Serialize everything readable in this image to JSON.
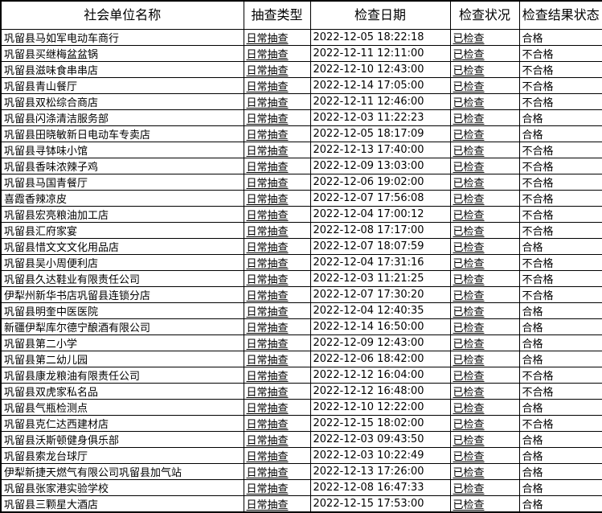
{
  "table": {
    "columns": [
      {
        "key": "name",
        "label": "社会单位名称"
      },
      {
        "key": "type",
        "label": "抽查类型"
      },
      {
        "key": "date",
        "label": "检查日期"
      },
      {
        "key": "status",
        "label": "检查状况"
      },
      {
        "key": "result",
        "label": "检查结果状态"
      }
    ],
    "rows": [
      {
        "name": "巩留县马如军电动车商行",
        "type": "日常抽查",
        "date": "2022-12-05 18:22:18",
        "status": "已检查",
        "result": "合格"
      },
      {
        "name": "巩留县买继梅盆盆锅",
        "type": "日常抽查",
        "date": "2022-12-11 12:11:00",
        "status": "已检查",
        "result": "不合格"
      },
      {
        "name": "巩留县滋味食串串店",
        "type": "日常抽查",
        "date": "2022-12-10 12:43:00",
        "status": "已检查",
        "result": "不合格"
      },
      {
        "name": "巩留县青山餐厅",
        "type": "日常抽查",
        "date": "2022-12-14 17:05:00",
        "status": "已检查",
        "result": "不合格"
      },
      {
        "name": "巩留县双松综合商店",
        "type": "日常抽查",
        "date": "2022-12-11 12:46:00",
        "status": "已检查",
        "result": "不合格"
      },
      {
        "name": "巩留县闪涤清洁服务部",
        "type": "日常抽查",
        "date": "2022-12-03 11:22:23",
        "status": "已检查",
        "result": "合格"
      },
      {
        "name": "巩留县田晓敏新日电动车专卖店",
        "type": "日常抽查",
        "date": "2022-12-05 18:17:09",
        "status": "已检查",
        "result": "合格"
      },
      {
        "name": "巩留县寻钵味小馆",
        "type": "日常抽查",
        "date": "2022-12-13 17:40:00",
        "status": "已检查",
        "result": "不合格"
      },
      {
        "name": "巩留县香味浓辣子鸡",
        "type": "日常抽查",
        "date": "2022-12-09 13:03:00",
        "status": "已检查",
        "result": "不合格"
      },
      {
        "name": "巩留县马国青餐厅",
        "type": "日常抽查",
        "date": "2022-12-06 19:02:00",
        "status": "已检查",
        "result": "不合格"
      },
      {
        "name": "喜霞香辣凉皮",
        "type": "日常抽查",
        "date": "2022-12-07 17:56:08",
        "status": "已检查",
        "result": "不合格"
      },
      {
        "name": "巩留县宏亮粮油加工店",
        "type": "日常抽查",
        "date": "2022-12-04 17:00:12",
        "status": "已检查",
        "result": "不合格"
      },
      {
        "name": "巩留县汇府家宴",
        "type": "日常抽查",
        "date": "2022-12-08 17:17:00",
        "status": "已检查",
        "result": "不合格"
      },
      {
        "name": "巩留县惜文文文化用品店",
        "type": "日常抽查",
        "date": "2022-12-07 18:07:59",
        "status": "已检查",
        "result": "合格"
      },
      {
        "name": "巩留县吴小周便利店",
        "type": "日常抽查",
        "date": "2022-12-04 17:31:16",
        "status": "已检查",
        "result": "不合格"
      },
      {
        "name": "巩留县久达鞋业有限责任公司",
        "type": "日常抽查",
        "date": "2022-12-03 11:21:25",
        "status": "已检查",
        "result": "不合格"
      },
      {
        "name": "伊犁州新华书店巩留县连锁分店",
        "type": "日常抽查",
        "date": "2022-12-07 17:30:20",
        "status": "已检查",
        "result": "不合格"
      },
      {
        "name": "巩留县明奎中医医院",
        "type": "日常抽查",
        "date": "2022-12-04 12:40:35",
        "status": "已检查",
        "result": "合格"
      },
      {
        "name": "新疆伊犁库尔德宁酿酒有限公司",
        "type": "日常抽查",
        "date": "2022-12-14 16:50:00",
        "status": "已检查",
        "result": "合格"
      },
      {
        "name": "巩留县第二小学",
        "type": "日常抽查",
        "date": "2022-12-09 12:43:00",
        "status": "已检查",
        "result": "合格"
      },
      {
        "name": "巩留县第二幼儿园",
        "type": "日常抽查",
        "date": "2022-12-06 18:42:00",
        "status": "已检查",
        "result": "合格"
      },
      {
        "name": "巩留县康龙粮油有限责任公司",
        "type": "日常抽查",
        "date": "2022-12-12 16:04:00",
        "status": "已检查",
        "result": "不合格"
      },
      {
        "name": "巩留县双虎家私名品",
        "type": "日常抽查",
        "date": "2022-12-12 16:48:00",
        "status": "已检查",
        "result": "不合格"
      },
      {
        "name": "巩留县气瓶检测点",
        "type": "日常抽查",
        "date": "2022-12-10 12:22:00",
        "status": "已检查",
        "result": "合格"
      },
      {
        "name": "巩留县克仁达西建材店",
        "type": "日常抽查",
        "date": "2022-12-15 18:02:00",
        "status": "已检查",
        "result": "不合格"
      },
      {
        "name": "巩留县沃斯顿健身俱乐部",
        "type": "日常抽查",
        "date": "2022-12-03 09:43:50",
        "status": "已检查",
        "result": "合格"
      },
      {
        "name": "巩留县索龙台球厅",
        "type": "日常抽查",
        "date": "2022-12-03 10:22:49",
        "status": "已检查",
        "result": "合格"
      },
      {
        "name": "伊犁新捷天燃气有限公司巩留县加气站",
        "type": "日常抽查",
        "date": "2022-12-13 17:26:00",
        "status": "已检查",
        "result": "合格"
      },
      {
        "name": "巩留县张家港实验学校",
        "type": "日常抽查",
        "date": "2022-12-08 16:47:33",
        "status": "已检查",
        "result": "合格"
      },
      {
        "name": "巩留县三颗星大酒店",
        "type": "日常抽查",
        "date": "2022-12-15 17:53:00",
        "status": "已检查",
        "result": "合格"
      }
    ]
  },
  "colors": {
    "border": "#000000",
    "text": "#000000",
    "background": "#ffffff"
  }
}
